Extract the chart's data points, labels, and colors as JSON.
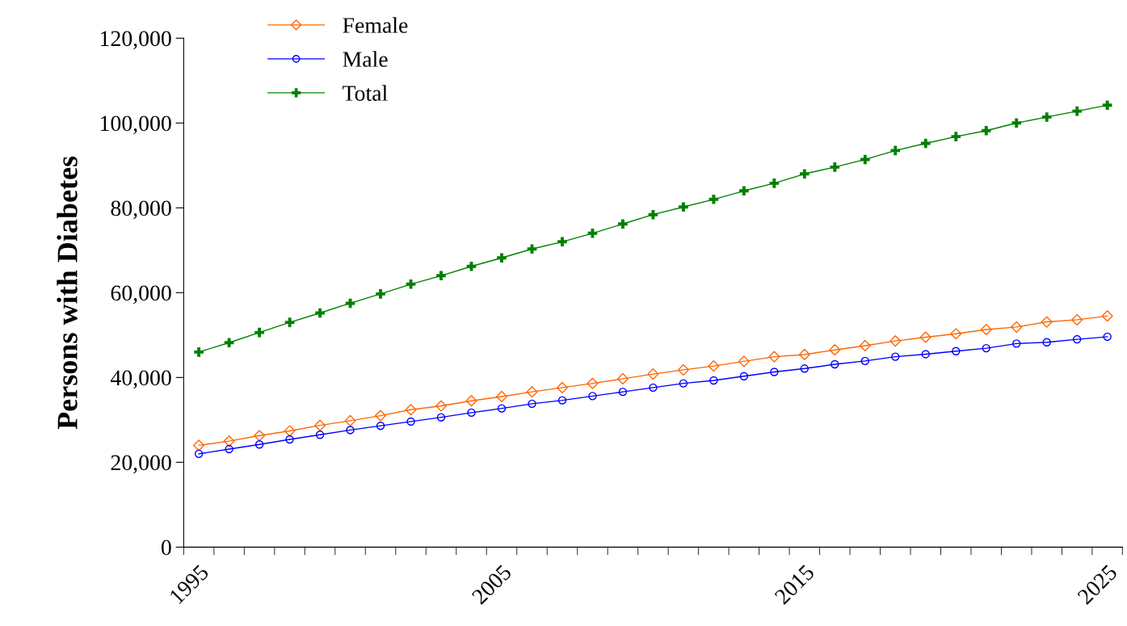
{
  "chart_data": {
    "type": "line",
    "ylabel": "Persons with Diabetes",
    "categories": [
      "1995",
      null,
      null,
      null,
      null,
      null,
      null,
      null,
      null,
      null,
      "2005",
      null,
      null,
      null,
      null,
      null,
      null,
      null,
      null,
      null,
      "2015",
      null,
      null,
      null,
      null,
      null,
      null,
      null,
      null,
      null,
      "2025"
    ],
    "series": [
      {
        "name": "Female",
        "color": "#ff6600",
        "marker": "diamond",
        "values": [
          24000,
          25000,
          26300,
          27400,
          28700,
          29800,
          31000,
          32400,
          33300,
          34500,
          35500,
          36600,
          37600,
          38600,
          39700,
          40800,
          41800,
          42700,
          43800,
          44900,
          45400,
          46500,
          47500,
          48600,
          49500,
          50300,
          51300,
          51900,
          53100,
          53600,
          54500
        ]
      },
      {
        "name": "Male",
        "color": "#0000ff",
        "marker": "circle",
        "values": [
          22000,
          23100,
          24200,
          25400,
          26500,
          27600,
          28600,
          29600,
          30600,
          31700,
          32700,
          33800,
          34600,
          35600,
          36600,
          37600,
          38600,
          39300,
          40300,
          41300,
          42100,
          43100,
          43900,
          44900,
          45500,
          46200,
          46900,
          48000,
          48300,
          49000,
          49600
        ]
      },
      {
        "name": "Total",
        "color": "#008000",
        "marker": "cross",
        "values": [
          46000,
          48200,
          50600,
          53000,
          55200,
          57500,
          59700,
          62000,
          64000,
          66200,
          68200,
          70300,
          72000,
          74000,
          76200,
          78400,
          80200,
          82000,
          84000,
          85800,
          88000,
          89600,
          91400,
          93500,
          95200,
          96800,
          98200,
          100000,
          101400,
          102800,
          104200
        ]
      }
    ],
    "ylim": [
      0,
      120000
    ],
    "yticks": [
      {
        "value": 0,
        "label": "0"
      },
      {
        "value": 20000,
        "label": "20,000"
      },
      {
        "value": 40000,
        "label": "40,000"
      },
      {
        "value": 60000,
        "label": "60,000"
      },
      {
        "value": 80000,
        "label": "80,000"
      },
      {
        "value": 100000,
        "label": "100,000"
      },
      {
        "value": 120000,
        "label": "120,000"
      }
    ],
    "legend": "top left",
    "grid": false,
    "line_style": "solid"
  }
}
